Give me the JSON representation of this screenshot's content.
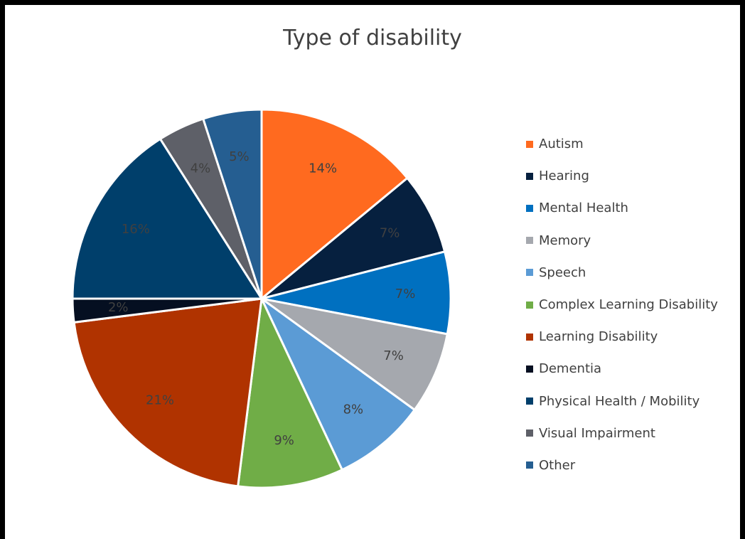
{
  "chart_data": {
    "type": "pie",
    "title": "Type of disability",
    "legend_position": "right",
    "slices": [
      {
        "label": "Autism",
        "value": 14,
        "data_label": "14%",
        "color": "#ff6a1f",
        "label_color": "#404040"
      },
      {
        "label": "Hearing",
        "value": 7,
        "data_label": "7%",
        "color": "#06203f",
        "label_color": "#404040"
      },
      {
        "label": "Mental Health",
        "value": 7,
        "data_label": "7%",
        "color": "#0070c0",
        "label_color": "#404040"
      },
      {
        "label": "Memory",
        "value": 7,
        "data_label": "7%",
        "color": "#a5a8ae",
        "label_color": "#404040"
      },
      {
        "label": "Speech",
        "value": 8,
        "data_label": "8%",
        "color": "#5b9bd5",
        "label_color": "#404040"
      },
      {
        "label": "Complex Learning Disability",
        "value": 9,
        "data_label": "9%",
        "color": "#70ad47",
        "label_color": "#404040"
      },
      {
        "label": "Learning Disability",
        "value": 21,
        "data_label": "21%",
        "color": "#b03300",
        "label_color": "#404040"
      },
      {
        "label": "Dementia",
        "value": 2,
        "data_label": "2%",
        "color": "#050f21",
        "label_color": "#404040"
      },
      {
        "label": "Physical Health / Mobility",
        "value": 16,
        "data_label": "16%",
        "color": "#003f6b",
        "label_color": "#404040"
      },
      {
        "label": "Visual Impairment",
        "value": 4,
        "data_label": "4%",
        "color": "#5e6068",
        "label_color": "#404040"
      },
      {
        "label": "Other",
        "value": 5,
        "data_label": "5%",
        "color": "#255e91",
        "label_color": "#404040"
      }
    ]
  }
}
